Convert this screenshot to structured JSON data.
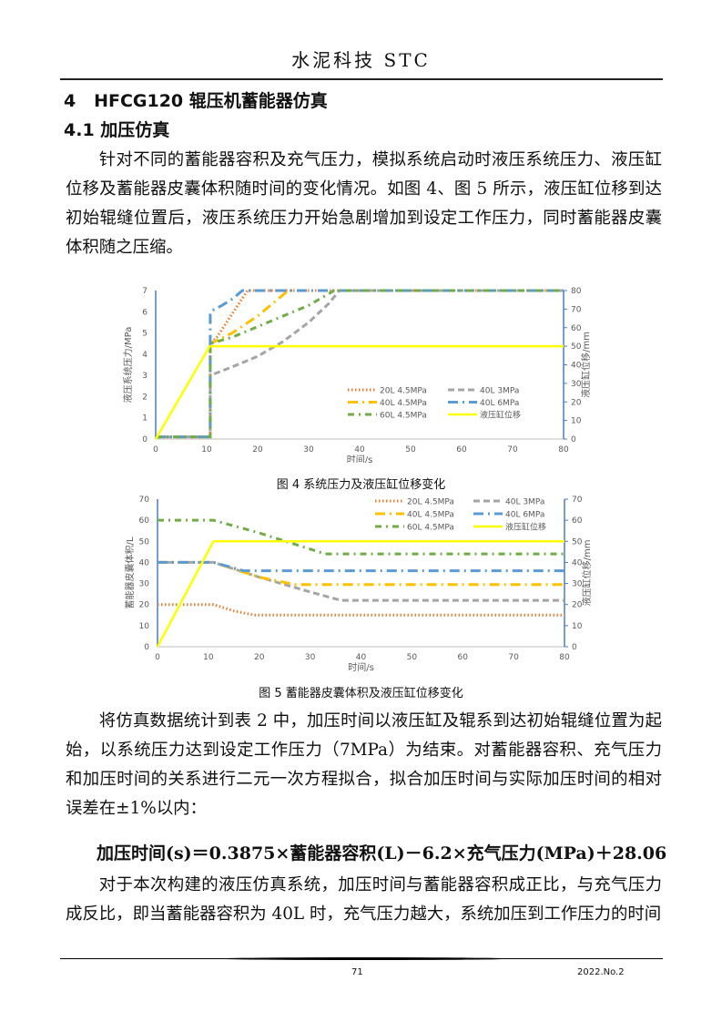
{
  "header": {
    "journal": "水泥科技 STC"
  },
  "section": {
    "title": "4   HFCG120 辊压机蓄能器仿真",
    "subsection": "4.1 加压仿真"
  },
  "paragraphs": [
    "针对不同的蓄能器容积及充气压力，模拟系统启动时液压系统压力、液压缸位移及蓄能器皮囊体积随时间的变化情况。如图 4、图 5 所示，液压缸位移到达初始辊缝位置后，液压系统压力开始急剧增加到设定工作压力，同时蓄能器皮囊体积随之压缩。",
    "将仿真数据统计到表 2 中，加压时间以液压缸及辊系到达初始辊缝位置为起始，以系统压力达到设定工作压力（7MPa）为结束。对蓄能器容积、充气压力和加压时间的关系进行二元一次方程拟合，拟合加压时间与实际加压时间的相对误差在±1%以内：",
    "对于本次构建的液压仿真系统，加压时间与蓄能器容积成正比，与充气压力成反比，即当蓄能器容积为 40L 时，充气压力越大，系统加压到工作压力的时间"
  ],
  "formula": "加压时间(s)＝0.3875×蓄能器容积(L)－6.2×充气压力(MPa)＋28.06",
  "footer": {
    "page": "71",
    "issue": "2022.No.2"
  },
  "chart_data": [
    {
      "type": "line",
      "caption": "图 4  系统压力及液压缸位移变化",
      "xlabel": "时间/s",
      "ylabel": "液压系统压力/MPa",
      "y2label": "液压缸位移/mm",
      "xlim": [
        0,
        80
      ],
      "ylim": [
        0,
        7
      ],
      "y2lim": [
        0,
        80
      ],
      "xticks": [
        0,
        10,
        20,
        30,
        40,
        50,
        60,
        70,
        80
      ],
      "yticks": [
        0,
        1,
        2,
        3,
        4,
        5,
        6,
        7
      ],
      "y2ticks": [
        0,
        10,
        20,
        30,
        40,
        50,
        60,
        70,
        80
      ],
      "grid": false,
      "legend_placement": "center-right",
      "series": [
        {
          "name": "20L 4.5MPa",
          "axis": "left",
          "color": "#ED7D31",
          "style": "dotted",
          "x": [
            0,
            10.7,
            10.7,
            12,
            15,
            18,
            80
          ],
          "y": [
            0.1,
            0.1,
            4.5,
            4.8,
            5.9,
            7,
            7
          ]
        },
        {
          "name": "40L 3MPa",
          "axis": "left",
          "color": "#A5A5A5",
          "style": "dashed",
          "x": [
            0,
            10.7,
            10.7,
            15,
            20,
            25,
            30,
            34,
            36,
            80
          ],
          "y": [
            0.1,
            0.1,
            3.0,
            3.4,
            3.9,
            4.6,
            5.5,
            6.4,
            7,
            7
          ]
        },
        {
          "name": "40L 4.5MPa",
          "axis": "left",
          "color": "#FFC000",
          "style": "long-dash-dot",
          "x": [
            0,
            10.7,
            10.7,
            15,
            20,
            26,
            80
          ],
          "y": [
            0.1,
            0.1,
            4.5,
            5.0,
            5.8,
            7,
            7
          ]
        },
        {
          "name": "40L 6MPa",
          "axis": "left",
          "color": "#5B9BD5",
          "style": "long-dash-dot",
          "x": [
            0,
            10.7,
            10.7,
            11,
            13,
            15,
            17,
            80
          ],
          "y": [
            0.1,
            0.1,
            5.9,
            6.05,
            6.3,
            6.6,
            7,
            7
          ]
        },
        {
          "name": "60L 4.5MPa",
          "axis": "left",
          "color": "#70AD47",
          "style": "dash-dot",
          "x": [
            0,
            10.7,
            10.7,
            15,
            20,
            25,
            30,
            35,
            80
          ],
          "y": [
            0.1,
            0.1,
            4.5,
            4.8,
            5.3,
            5.8,
            6.3,
            7,
            7
          ]
        },
        {
          "name": "液压缸位移",
          "axis": "right",
          "color": "#FFFF00",
          "style": "solid",
          "x": [
            0,
            10.6,
            80
          ],
          "y": [
            0,
            50,
            50
          ]
        }
      ]
    },
    {
      "type": "line",
      "caption": "图 5  蓄能器皮囊体积及液压缸位移变化",
      "xlabel": "时间/s",
      "ylabel": "蓄能器皮囊体积/L",
      "y2label": "液压缸位移/mm",
      "xlim": [
        0,
        80
      ],
      "ylim": [
        0,
        70
      ],
      "y2lim": [
        0,
        70
      ],
      "xticks": [
        0,
        10,
        20,
        30,
        40,
        50,
        60,
        70,
        80
      ],
      "yticks": [
        0,
        10,
        20,
        30,
        40,
        50,
        60,
        70
      ],
      "y2ticks": [
        0,
        10,
        20,
        30,
        40,
        50,
        60,
        70
      ],
      "grid": false,
      "legend_placement": "top-right",
      "series": [
        {
          "name": "20L 4.5MPa",
          "axis": "left",
          "color": "#ED7D31",
          "style": "dotted",
          "x": [
            0,
            11,
            15,
            19,
            80
          ],
          "y": [
            20,
            20,
            17,
            15,
            15
          ]
        },
        {
          "name": "40L 3MPa",
          "axis": "left",
          "color": "#A5A5A5",
          "style": "dashed",
          "x": [
            0,
            11,
            20,
            30,
            36,
            80
          ],
          "y": [
            40,
            40,
            33,
            26,
            22,
            22
          ]
        },
        {
          "name": "40L 4.5MPa",
          "axis": "left",
          "color": "#FFC000",
          "style": "long-dash-dot",
          "x": [
            0,
            11,
            20,
            27,
            80
          ],
          "y": [
            40,
            40,
            33,
            29.5,
            29.5
          ]
        },
        {
          "name": "40L 6MPa",
          "axis": "left",
          "color": "#5B9BD5",
          "style": "long-dash-dot",
          "x": [
            0,
            11,
            17,
            80
          ],
          "y": [
            40,
            40,
            36,
            36
          ]
        },
        {
          "name": "60L 4.5MPa",
          "axis": "left",
          "color": "#70AD47",
          "style": "dash-dot",
          "x": [
            0,
            11,
            20,
            33,
            80
          ],
          "y": [
            60,
            60,
            54,
            44,
            44
          ]
        },
        {
          "name": "液压缸位移",
          "axis": "right",
          "color": "#FFFF00",
          "style": "solid",
          "x": [
            0,
            11,
            80
          ],
          "y": [
            0,
            50,
            50
          ]
        }
      ]
    }
  ]
}
